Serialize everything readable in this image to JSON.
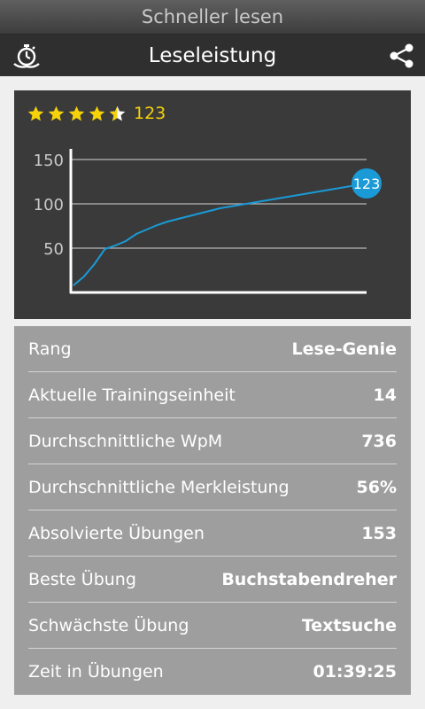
{
  "app": {
    "title": "Schneller lesen"
  },
  "action_bar": {
    "title": "Leseleistung",
    "left_icon": "stopwatch-icon",
    "right_icon": "share-icon"
  },
  "rating": {
    "stars": 4.5,
    "max_stars": 5,
    "score": "123"
  },
  "chart_data": {
    "type": "line",
    "title": "",
    "xlabel": "",
    "ylabel": "",
    "ylim": [
      0,
      150
    ],
    "yticks": [
      50,
      100,
      150
    ],
    "grid": true,
    "series": [
      {
        "color": "#1a9ad6",
        "x": [
          0,
          1,
          2,
          3,
          4,
          5,
          6,
          7,
          8,
          9,
          10,
          11,
          12,
          13,
          14,
          15,
          16,
          17,
          18,
          19,
          20,
          21,
          22,
          23,
          24,
          25,
          26,
          27,
          28
        ],
        "values": [
          8,
          18,
          32,
          49,
          53,
          58,
          66,
          71,
          76,
          80,
          83,
          86,
          89,
          92,
          95,
          97,
          99,
          101,
          103,
          105,
          107,
          109,
          111,
          113,
          115,
          117,
          119,
          121,
          123
        ]
      }
    ],
    "endpoint_label": "123"
  },
  "stats": [
    {
      "label": "Rang",
      "value": "Lese-Genie"
    },
    {
      "label": "Aktuelle Trainingseinheit",
      "value": "14"
    },
    {
      "label": "Durchschnittliche WpM",
      "value": "736"
    },
    {
      "label": "Durchschnittliche Merkleistung",
      "value": "56%"
    },
    {
      "label": "Absolvierte Übungen",
      "value": "153"
    },
    {
      "label": "Beste Übung",
      "value": "Buchstabendreher"
    },
    {
      "label": "Schwächste Übung",
      "value": "Textsuche"
    },
    {
      "label": "Zeit in Übungen",
      "value": "01:39:25"
    }
  ],
  "colors": {
    "accent": "#1a9ad6",
    "star": "#f5d20a",
    "card_bg": "#3a3a3a",
    "stats_bg": "#9e9e9e"
  }
}
